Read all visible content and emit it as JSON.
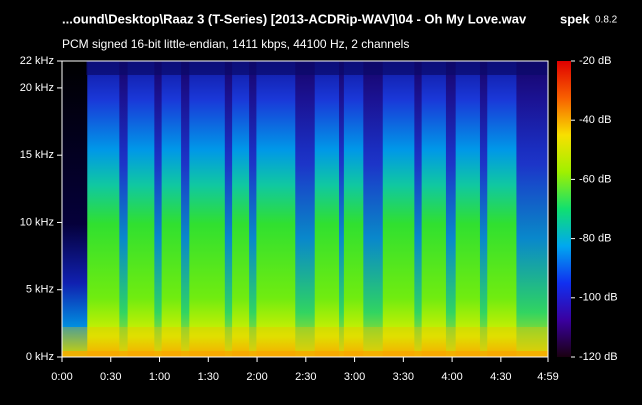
{
  "chart_data": {
    "type": "spectrogram",
    "title": "...ound\\Desktop\\Raaz 3 (T-Series) [2013-ACDRip-WAV]\\04 - Oh My Love.wav",
    "app": "spek",
    "version": "0.8.2",
    "subtitle": "PCM signed 16-bit little-endian, 1411 kbps, 44100 Hz, 2 channels",
    "xlim": [
      0,
      299
    ],
    "xticks": [
      {
        "value": 0,
        "label": "0:00"
      },
      {
        "value": 30,
        "label": "0:30"
      },
      {
        "value": 60,
        "label": "1:00"
      },
      {
        "value": 90,
        "label": "1:30"
      },
      {
        "value": 120,
        "label": "2:00"
      },
      {
        "value": 150,
        "label": "2:30"
      },
      {
        "value": 180,
        "label": "3:00"
      },
      {
        "value": 210,
        "label": "3:30"
      },
      {
        "value": 240,
        "label": "4:00"
      },
      {
        "value": 270,
        "label": "4:30"
      },
      {
        "value": 299,
        "label": "4:59"
      }
    ],
    "ylim": [
      0,
      22
    ],
    "yticks": [
      {
        "value": 0,
        "label": "0 kHz"
      },
      {
        "value": 5,
        "label": "5 kHz"
      },
      {
        "value": 10,
        "label": "10 kHz"
      },
      {
        "value": 15,
        "label": "15 kHz"
      },
      {
        "value": 20,
        "label": "20 kHz"
      },
      {
        "value": 22,
        "label": "22 kHz"
      }
    ],
    "colorbar": {
      "lim": [
        -120,
        -20
      ],
      "ticks": [
        {
          "value": -20,
          "label": "-20 dB"
        },
        {
          "value": -40,
          "label": "-40 dB"
        },
        {
          "value": -60,
          "label": "-60 dB"
        },
        {
          "value": -80,
          "label": "-80 dB"
        },
        {
          "value": -100,
          "label": "-100 dB"
        },
        {
          "value": -120,
          "label": "-120 dB"
        }
      ],
      "colors": [
        "#1a0010",
        "#3a00a0",
        "#1030f0",
        "#00a8f0",
        "#10e070",
        "#a0f000",
        "#f8e000",
        "#f86000",
        "#e00000"
      ]
    }
  }
}
